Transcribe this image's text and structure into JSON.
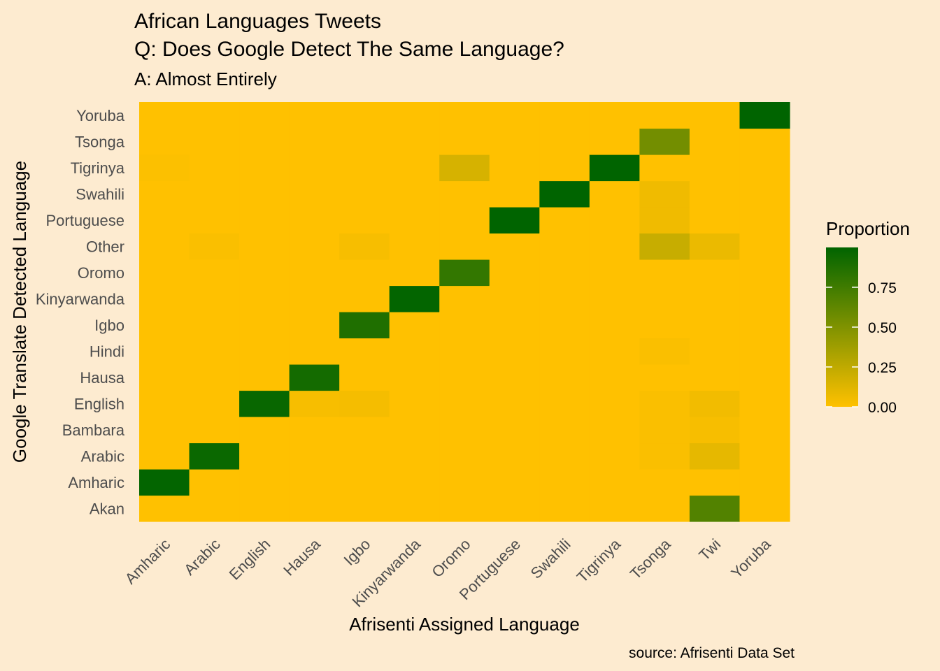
{
  "chart_data": {
    "type": "heatmap",
    "title_line1": "African Languages Tweets",
    "title_line2": "Q: Does Google Detect The Same Language?",
    "subtitle": "A: Almost Entirely",
    "xlabel": "Afrisenti Assigned Language",
    "ylabel": "Google Translate Detected Language",
    "caption": "source: Afrisenti Data Set",
    "x_categories": [
      "Amharic",
      "Arabic",
      "English",
      "Hausa",
      "Igbo",
      "Kinyarwanda",
      "Oromo",
      "Portuguese",
      "Swahili",
      "Tigrinya",
      "Tsonga",
      "Twi",
      "Yoruba"
    ],
    "y_categories": [
      "Akan",
      "Amharic",
      "Arabic",
      "Bambara",
      "English",
      "Hausa",
      "Hindi",
      "Igbo",
      "Kinyarwanda",
      "Oromo",
      "Other",
      "Portuguese",
      "Swahili",
      "Tigrinya",
      "Tsonga",
      "Yoruba"
    ],
    "legend": {
      "title": "Proportion",
      "ticks": [
        0.0,
        0.25,
        0.5,
        0.75
      ],
      "tick_labels": [
        "0.00",
        "0.25",
        "0.50",
        "0.75"
      ],
      "range": [
        0,
        1
      ],
      "low_color": "#ffc100",
      "high_color": "#006400"
    },
    "cells": [
      {
        "x": "Amharic",
        "y": "Amharic",
        "value": 0.99
      },
      {
        "x": "Amharic",
        "y": "Tigrinya",
        "value": 0.01
      },
      {
        "x": "Arabic",
        "y": "Arabic",
        "value": 0.96
      },
      {
        "x": "Arabic",
        "y": "Other",
        "value": 0.02
      },
      {
        "x": "English",
        "y": "English",
        "value": 0.97
      },
      {
        "x": "Hausa",
        "y": "Hausa",
        "value": 0.92
      },
      {
        "x": "Hausa",
        "y": "English",
        "value": 0.03
      },
      {
        "x": "Igbo",
        "y": "Igbo",
        "value": 0.88
      },
      {
        "x": "Igbo",
        "y": "English",
        "value": 0.04
      },
      {
        "x": "Igbo",
        "y": "Other",
        "value": 0.03
      },
      {
        "x": "Kinyarwanda",
        "y": "Kinyarwanda",
        "value": 0.99
      },
      {
        "x": "Oromo",
        "y": "Oromo",
        "value": 0.8
      },
      {
        "x": "Oromo",
        "y": "Tigrinya",
        "value": 0.16
      },
      {
        "x": "Portuguese",
        "y": "Portuguese",
        "value": 1.0
      },
      {
        "x": "Swahili",
        "y": "Swahili",
        "value": 1.0
      },
      {
        "x": "Tigrinya",
        "y": "Tigrinya",
        "value": 1.0
      },
      {
        "x": "Tsonga",
        "y": "Tsonga",
        "value": 0.55
      },
      {
        "x": "Tsonga",
        "y": "Other",
        "value": 0.22
      },
      {
        "x": "Tsonga",
        "y": "Portuguese",
        "value": 0.06
      },
      {
        "x": "Tsonga",
        "y": "Swahili",
        "value": 0.06
      },
      {
        "x": "Tsonga",
        "y": "Hindi",
        "value": 0.02
      },
      {
        "x": "Tsonga",
        "y": "English",
        "value": 0.02
      },
      {
        "x": "Tsonga",
        "y": "Bambara",
        "value": 0.02
      },
      {
        "x": "Tsonga",
        "y": "Arabic",
        "value": 0.02
      },
      {
        "x": "Twi",
        "y": "Akan",
        "value": 0.68
      },
      {
        "x": "Twi",
        "y": "Arabic",
        "value": 0.1
      },
      {
        "x": "Twi",
        "y": "Other",
        "value": 0.08
      },
      {
        "x": "Twi",
        "y": "English",
        "value": 0.05
      },
      {
        "x": "Twi",
        "y": "Bambara",
        "value": 0.03
      },
      {
        "x": "Yoruba",
        "y": "Yoruba",
        "value": 1.0
      }
    ]
  }
}
